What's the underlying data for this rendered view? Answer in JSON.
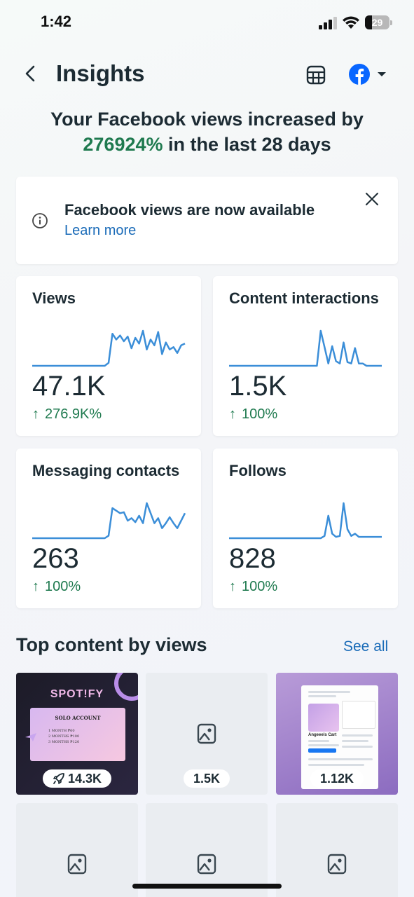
{
  "status_bar": {
    "time": "1:42",
    "battery": "29"
  },
  "header": {
    "title": "Insights"
  },
  "summary": {
    "line1": "Your Facebook views increased by",
    "pct": "276924%",
    "rest": " in the last 28 days"
  },
  "banner": {
    "title": "Facebook views are now available",
    "link": "Learn more"
  },
  "cards": [
    {
      "title": "Views",
      "value": "47.1K",
      "change": "276.9K%",
      "spark": [
        0,
        0,
        0,
        0,
        0,
        0,
        0,
        0,
        0,
        0,
        0,
        0,
        0,
        0,
        0,
        0,
        0,
        0,
        0,
        0,
        5,
        55,
        45,
        52,
        42,
        50,
        30,
        48,
        38,
        60,
        28,
        45,
        35,
        58,
        20,
        40,
        28,
        32,
        22,
        35,
        38
      ]
    },
    {
      "title": "Content interactions",
      "value": "1.5K",
      "change": "100%",
      "spark": [
        0,
        0,
        0,
        0,
        0,
        0,
        0,
        0,
        0,
        0,
        0,
        0,
        0,
        0,
        0,
        0,
        0,
        0,
        0,
        0,
        0,
        0,
        0,
        0,
        75,
        40,
        5,
        42,
        10,
        5,
        50,
        8,
        5,
        38,
        5,
        5,
        0,
        0,
        0,
        0,
        0
      ]
    },
    {
      "title": "Messaging contacts",
      "value": "263",
      "change": "100%",
      "spark": [
        0,
        0,
        0,
        0,
        0,
        0,
        0,
        0,
        0,
        0,
        0,
        0,
        0,
        0,
        0,
        0,
        0,
        0,
        0,
        0,
        5,
        60,
        55,
        50,
        52,
        35,
        40,
        32,
        45,
        30,
        70,
        50,
        30,
        40,
        20,
        30,
        42,
        30,
        20,
        35,
        50
      ]
    },
    {
      "title": "Follows",
      "value": "828",
      "change": "100%",
      "spark": [
        0,
        0,
        0,
        0,
        0,
        0,
        0,
        0,
        0,
        0,
        0,
        0,
        0,
        0,
        0,
        0,
        0,
        0,
        0,
        0,
        0,
        0,
        0,
        0,
        0,
        5,
        50,
        10,
        3,
        5,
        78,
        20,
        5,
        10,
        3,
        3,
        3,
        3,
        3,
        3,
        3
      ]
    }
  ],
  "top_content": {
    "title": "Top content by views",
    "see_all": "See all",
    "items": [
      {
        "label": "14.3K",
        "kind": "spotify",
        "brand": "SPOT!FY",
        "heading": "SOLO ACCOUNT",
        "rows": [
          "1 MONTH  ₱60",
          "2 MONTHS  ₱100",
          "3 MONTHS  ₱120"
        ]
      },
      {
        "label": "1.5K",
        "kind": "placeholder"
      },
      {
        "label": "1.12K",
        "kind": "promo",
        "name": "Angeeels Cart"
      },
      {
        "label": "",
        "kind": "placeholder"
      },
      {
        "label": "",
        "kind": "placeholder"
      },
      {
        "label": "",
        "kind": "placeholder"
      }
    ]
  },
  "colors": {
    "accent_green": "#1f7a4f",
    "link_blue": "#1a6bb8",
    "spark_blue": "#3b8ed8",
    "facebook_blue": "#0866ff"
  },
  "icons": [
    "back-arrow-icon",
    "table-icon",
    "facebook-icon",
    "caret-down-icon",
    "info-icon",
    "close-icon",
    "arrow-up-icon",
    "rocket-icon",
    "image-icon"
  ]
}
